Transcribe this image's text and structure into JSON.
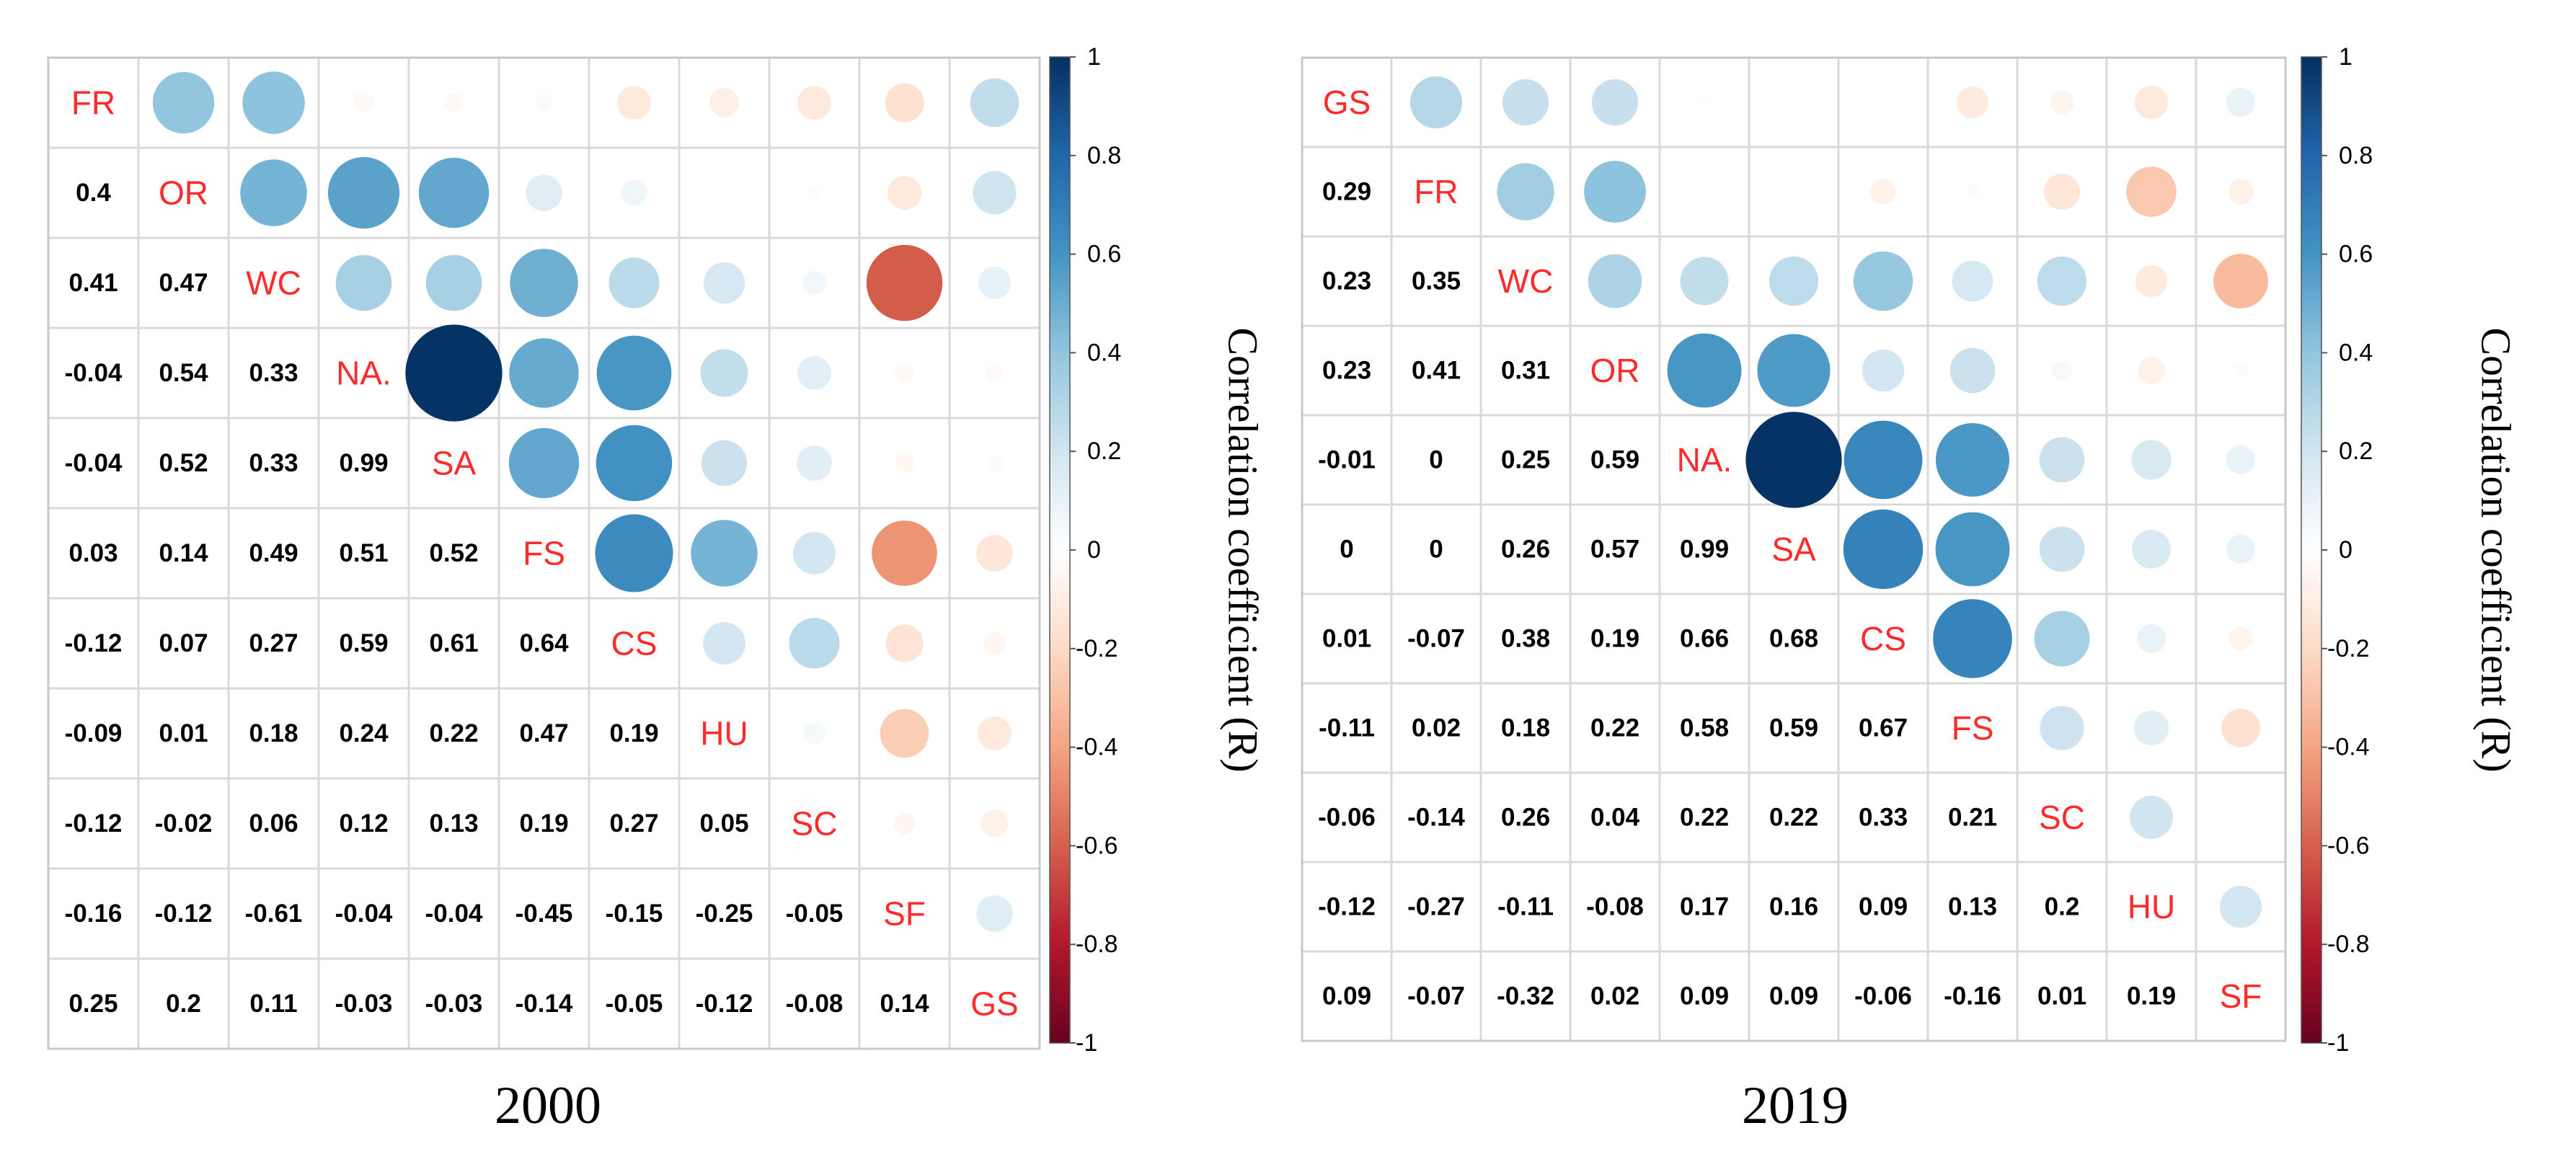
{
  "chart_data": [
    {
      "type": "heatmap",
      "subtype": "correlogram",
      "title": "2000",
      "variables": [
        "FR",
        "OR",
        "WC",
        "NA.",
        "SA",
        "FS",
        "CS",
        "HU",
        "SC",
        "SF",
        "GS"
      ],
      "matrix": [
        [
          1,
          0.4,
          0.41,
          -0.04,
          -0.04,
          0.03,
          -0.12,
          -0.09,
          -0.12,
          -0.16,
          0.25
        ],
        [
          0.4,
          1,
          0.47,
          0.54,
          0.52,
          0.14,
          0.07,
          0.01,
          -0.02,
          -0.12,
          0.2
        ],
        [
          0.41,
          0.47,
          1,
          0.33,
          0.33,
          0.49,
          0.27,
          0.18,
          0.06,
          -0.61,
          0.11
        ],
        [
          -0.04,
          0.54,
          0.33,
          1,
          0.99,
          0.51,
          0.59,
          0.24,
          0.12,
          -0.04,
          -0.03
        ],
        [
          -0.04,
          0.52,
          0.33,
          0.99,
          1,
          0.52,
          0.61,
          0.22,
          0.13,
          -0.04,
          -0.03
        ],
        [
          0.03,
          0.14,
          0.49,
          0.51,
          0.52,
          1,
          0.64,
          0.47,
          0.19,
          -0.45,
          -0.14
        ],
        [
          -0.12,
          0.07,
          0.27,
          0.59,
          0.61,
          0.64,
          1,
          0.19,
          0.27,
          -0.15,
          -0.05
        ],
        [
          -0.09,
          0.01,
          0.18,
          0.24,
          0.22,
          0.47,
          0.19,
          1,
          0.05,
          -0.25,
          -0.12
        ],
        [
          -0.12,
          -0.02,
          0.06,
          0.12,
          0.13,
          0.19,
          0.27,
          0.05,
          1,
          -0.05,
          -0.08
        ],
        [
          -0.16,
          -0.12,
          -0.61,
          -0.04,
          -0.04,
          -0.45,
          -0.15,
          -0.25,
          -0.05,
          1,
          0.14
        ],
        [
          0.25,
          0.2,
          0.11,
          -0.03,
          -0.03,
          -0.14,
          -0.05,
          -0.12,
          -0.08,
          0.14,
          1
        ]
      ],
      "lower_triangle": "numbers",
      "upper_triangle": "circles",
      "colorbar": {
        "label": "Correlation coefficient (R)",
        "range": [
          -1,
          1
        ],
        "ticks": [
          "1",
          "0.8",
          "0.6",
          "0.4",
          "0.2",
          "0",
          "-0.2",
          "-0.4",
          "-0.6",
          "-0.8",
          "-1"
        ]
      }
    },
    {
      "type": "heatmap",
      "subtype": "correlogram",
      "title": "2019",
      "variables": [
        "GS",
        "FR",
        "WC",
        "OR",
        "NA.",
        "SA",
        "CS",
        "FS",
        "SC",
        "HU",
        "SF"
      ],
      "matrix": [
        [
          1,
          0.29,
          0.23,
          0.23,
          -0.01,
          0,
          0.01,
          -0.11,
          -0.06,
          -0.12,
          0.09
        ],
        [
          0.29,
          1,
          0.35,
          0.41,
          0,
          0,
          -0.07,
          0.02,
          -0.14,
          -0.27,
          -0.07
        ],
        [
          0.23,
          0.35,
          1,
          0.31,
          0.25,
          0.26,
          0.38,
          0.18,
          0.26,
          -0.11,
          -0.32
        ],
        [
          0.23,
          0.41,
          0.31,
          1,
          0.59,
          0.57,
          0.19,
          0.22,
          0.04,
          -0.08,
          0.02
        ],
        [
          -0.01,
          0,
          0.25,
          0.59,
          1,
          0.99,
          0.66,
          0.58,
          0.22,
          0.17,
          0.09
        ],
        [
          0,
          0,
          0.26,
          0.57,
          0.99,
          1,
          0.68,
          0.59,
          0.22,
          0.16,
          0.09
        ],
        [
          0.01,
          -0.07,
          0.38,
          0.19,
          0.66,
          0.68,
          1,
          0.67,
          0.33,
          0.09,
          -0.06
        ],
        [
          -0.11,
          0.02,
          0.18,
          0.22,
          0.58,
          0.59,
          0.67,
          1,
          0.21,
          0.13,
          -0.16
        ],
        [
          -0.06,
          -0.14,
          0.26,
          0.04,
          0.22,
          0.22,
          0.33,
          0.21,
          1,
          0.2,
          0.01
        ],
        [
          -0.12,
          -0.27,
          -0.11,
          -0.08,
          0.17,
          0.16,
          0.09,
          0.13,
          0.2,
          1,
          0.19
        ],
        [
          0.09,
          -0.07,
          -0.32,
          0.02,
          0.09,
          0.09,
          -0.06,
          -0.16,
          0.01,
          0.19,
          1
        ]
      ],
      "lower_triangle": "numbers",
      "upper_triangle": "circles",
      "colorbar": {
        "label": "Correlation coefficient (R)",
        "range": [
          -1,
          1
        ],
        "ticks": [
          "1",
          "0.8",
          "0.6",
          "0.4",
          "0.2",
          "0",
          "-0.2",
          "-0.4",
          "-0.6",
          "-0.8",
          "-1"
        ]
      }
    }
  ],
  "colors": {
    "negative_strong": "#67001f",
    "negative_mid": "#d6604d",
    "negative_light": "#fddbc7",
    "neutral": "#ffffff",
    "positive_light": "#d1e5f0",
    "positive_mid": "#4393c3",
    "positive_strong": "#053061",
    "variable_label": "#ff2b2b"
  }
}
